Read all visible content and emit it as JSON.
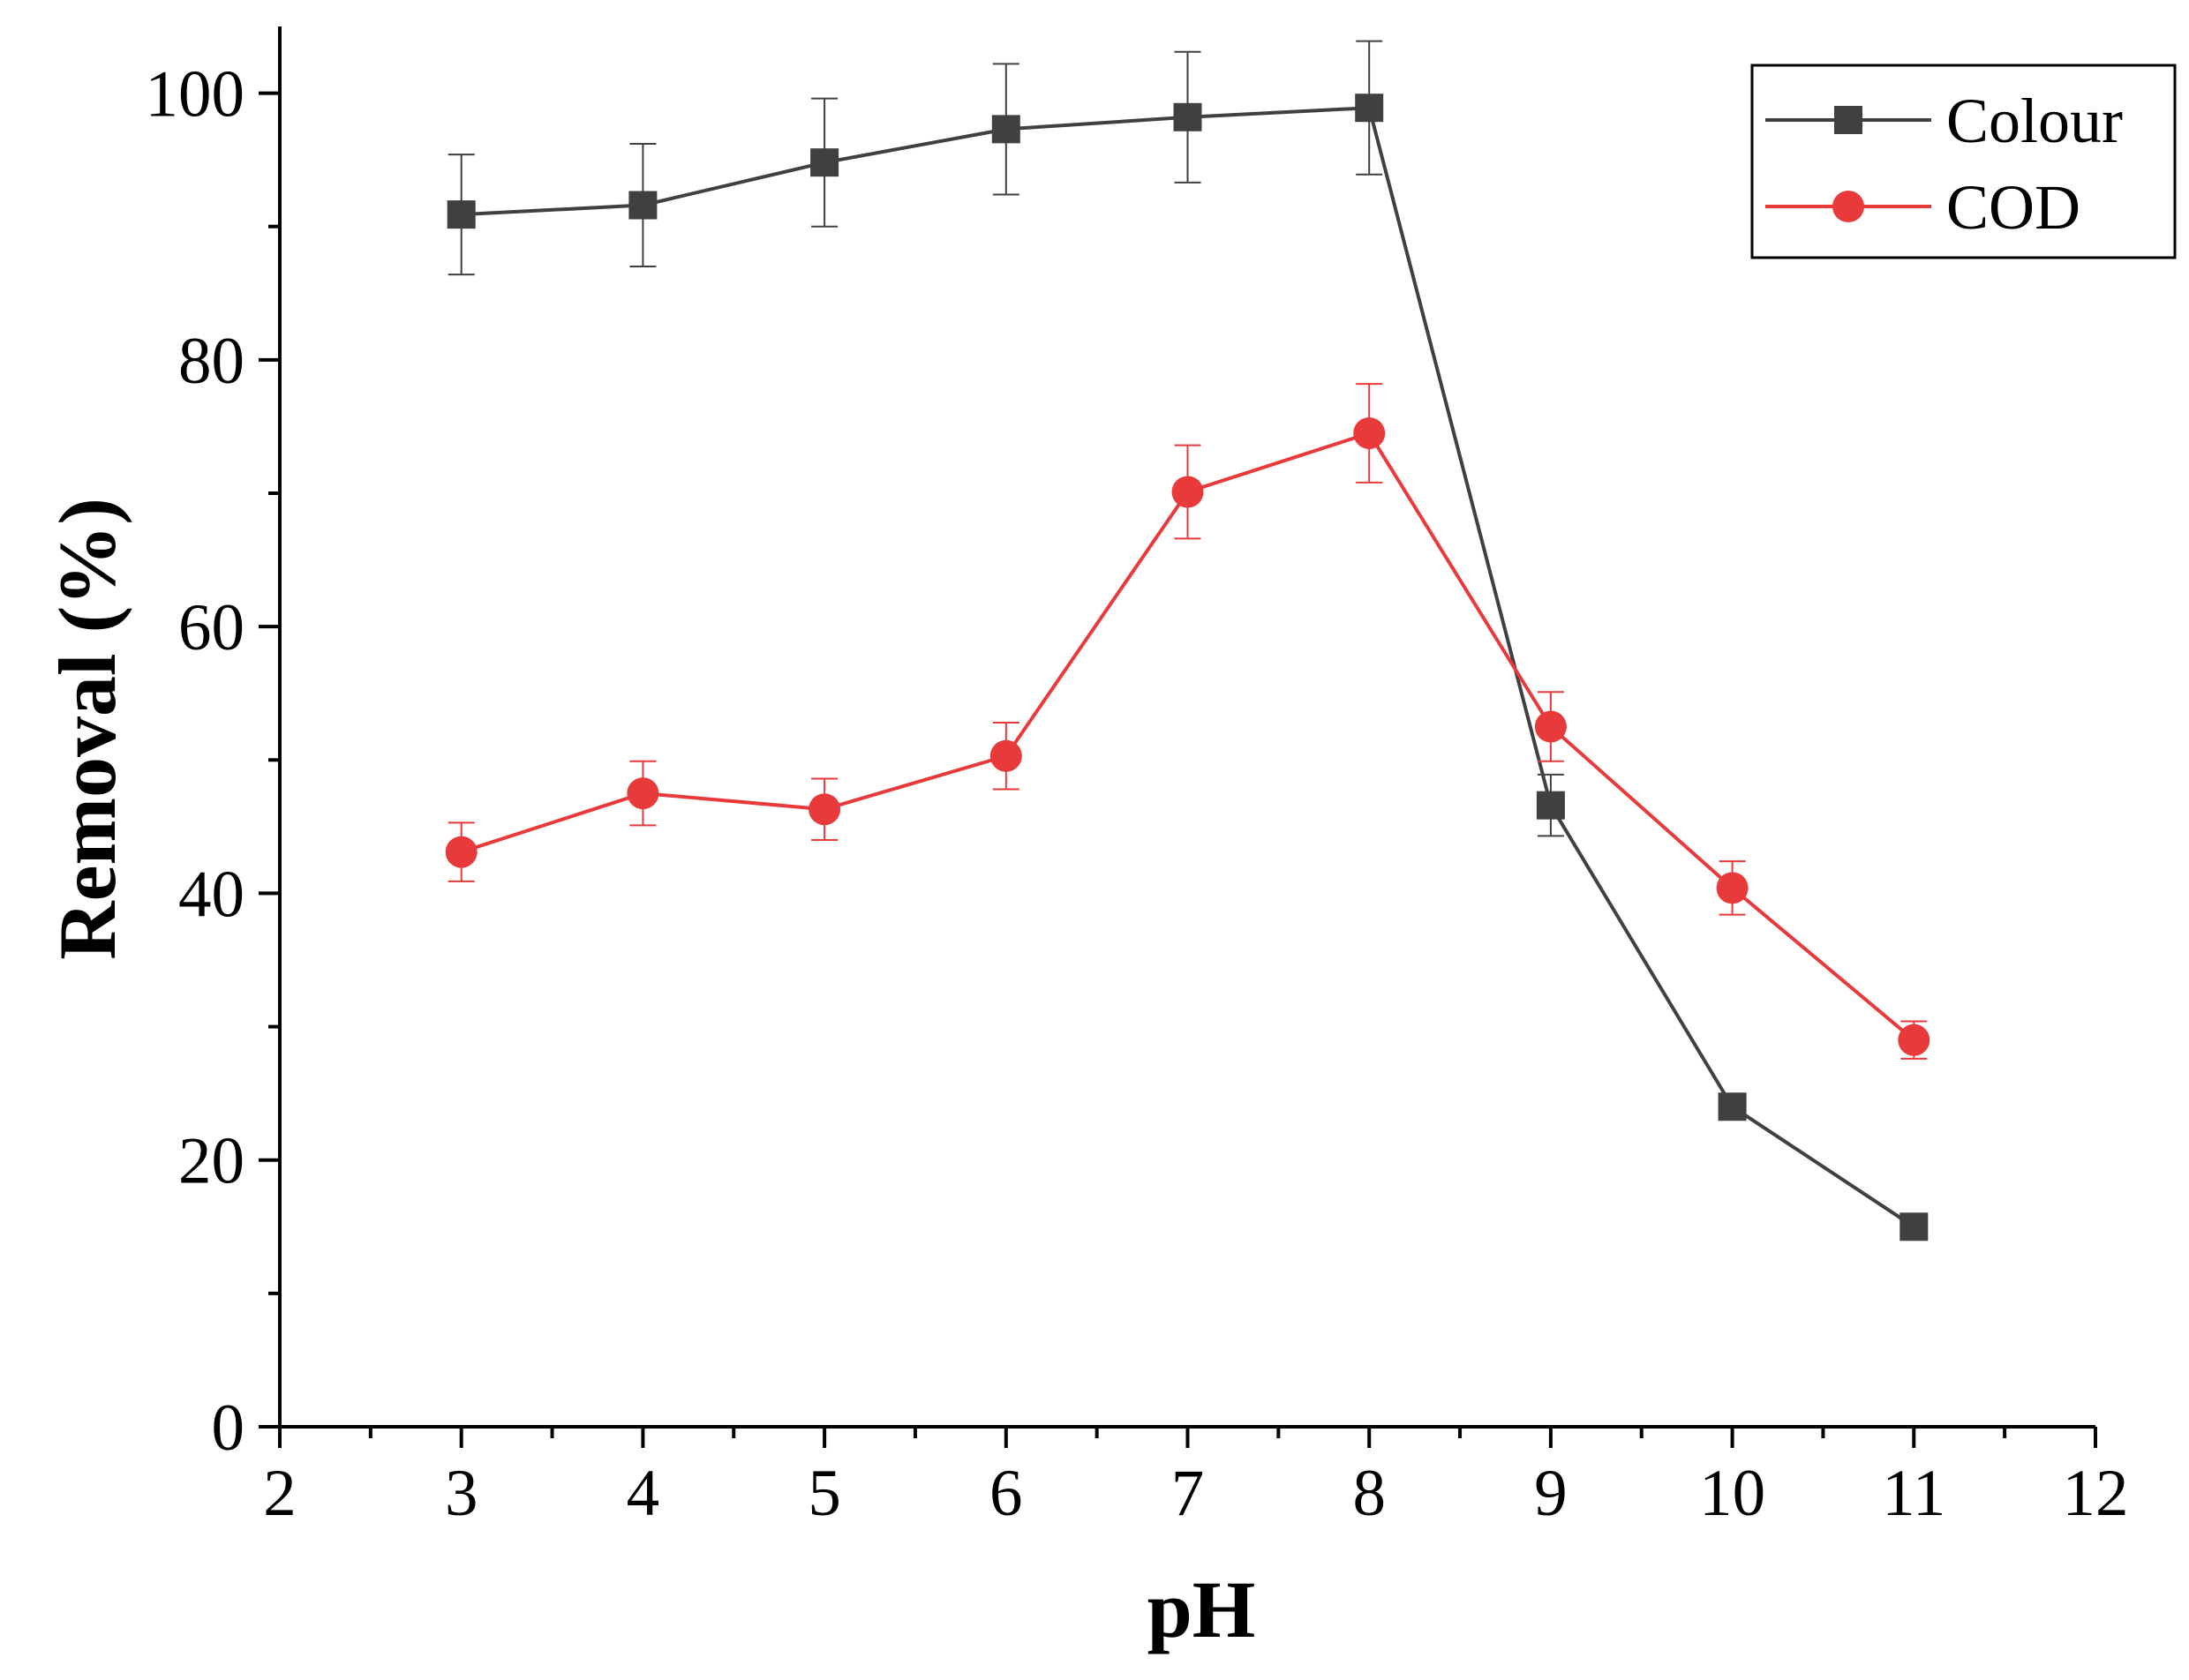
{
  "chart_data": {
    "type": "line",
    "title": "",
    "xlabel": "pH",
    "ylabel": "Removal (%)",
    "xlim": [
      2,
      12
    ],
    "ylim": [
      0,
      105
    ],
    "xticks": [
      2,
      3,
      4,
      5,
      6,
      7,
      8,
      9,
      10,
      11,
      12
    ],
    "yticks": [
      0,
      20,
      40,
      60,
      80,
      100
    ],
    "xtick_labels": [
      "2",
      "3",
      "4",
      "5",
      "6",
      "7",
      "8",
      "9",
      "10",
      "11",
      "12"
    ],
    "ytick_labels": [
      "0",
      "20",
      "40",
      "60",
      "80",
      "100"
    ],
    "legend_position": "top-right",
    "grid": false,
    "x": [
      3,
      4,
      5,
      6,
      7,
      8,
      9,
      10,
      11
    ],
    "series": [
      {
        "name": "Colour",
        "color": "#404040",
        "marker": "square",
        "values": [
          90.9,
          91.6,
          94.8,
          97.3,
          98.2,
          98.9,
          46.6,
          24.0,
          15.0
        ],
        "errors": [
          4.5,
          4.6,
          4.8,
          4.9,
          4.9,
          5.0,
          2.3,
          0.7,
          0.5
        ]
      },
      {
        "name": "COD",
        "color": "#e83a3a",
        "marker": "circle",
        "values": [
          43.1,
          47.5,
          46.3,
          50.3,
          70.1,
          74.5,
          52.5,
          40.4,
          29.0
        ],
        "errors": [
          2.2,
          2.4,
          2.3,
          2.5,
          3.5,
          3.7,
          2.6,
          2.0,
          1.4
        ]
      }
    ]
  }
}
